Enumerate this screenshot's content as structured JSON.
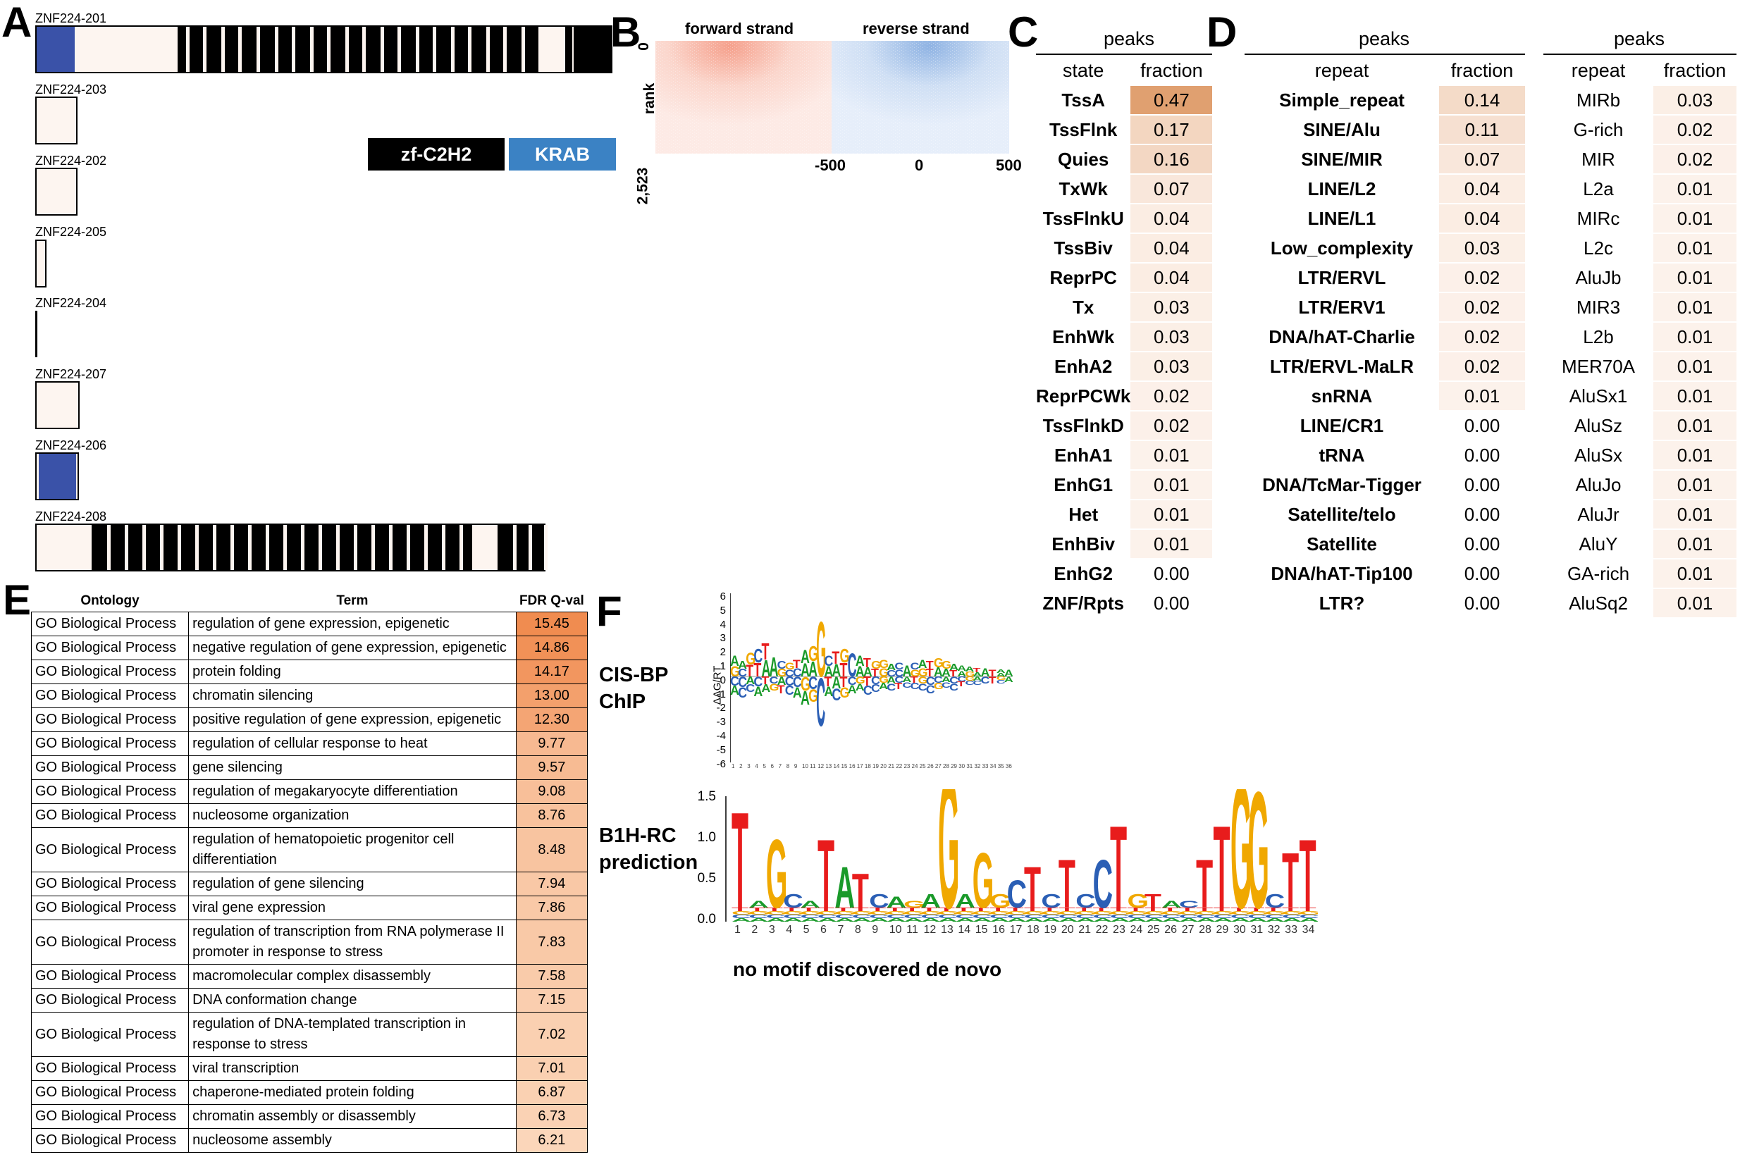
{
  "panel_labels": {
    "a": "A",
    "b": "B",
    "c": "C",
    "d": "D",
    "e": "E",
    "f": "F"
  },
  "panelA": {
    "transcripts": [
      {
        "name": "ZNF224-201"
      },
      {
        "name": "ZNF224-203"
      },
      {
        "name": "ZNF224-202"
      },
      {
        "name": "ZNF224-205"
      },
      {
        "name": "ZNF224-204"
      },
      {
        "name": "ZNF224-207"
      },
      {
        "name": "ZNF224-206"
      },
      {
        "name": "ZNF224-208"
      }
    ],
    "legend": {
      "zf": "zf-C2H2",
      "krab": "KRAB"
    },
    "colors": {
      "zf": "#000000",
      "krab": "#3a52a8",
      "krab_legend": "#3b82c4",
      "utr": "#fdf5f0"
    }
  },
  "panelB": {
    "forward": "forward strand",
    "reverse": "reverse strand",
    "rank_label": "rank",
    "rank_top": "0",
    "rank_bottom": "2,523",
    "x_ticks": [
      "-500",
      "0",
      "500"
    ]
  },
  "panelC": {
    "group_header": "peaks",
    "col_state": "state",
    "col_fraction": "fraction",
    "rows": [
      {
        "label": "TssA",
        "value": "0.47"
      },
      {
        "label": "TssFlnk",
        "value": "0.17"
      },
      {
        "label": "Quies",
        "value": "0.16"
      },
      {
        "label": "TxWk",
        "value": "0.07"
      },
      {
        "label": "TssFlnkU",
        "value": "0.04"
      },
      {
        "label": "TssBiv",
        "value": "0.04"
      },
      {
        "label": "ReprPC",
        "value": "0.04"
      },
      {
        "label": "Tx",
        "value": "0.03"
      },
      {
        "label": "EnhWk",
        "value": "0.03"
      },
      {
        "label": "EnhA2",
        "value": "0.03"
      },
      {
        "label": "ReprPCWk",
        "value": "0.02"
      },
      {
        "label": "TssFlnkD",
        "value": "0.02"
      },
      {
        "label": "EnhA1",
        "value": "0.01"
      },
      {
        "label": "EnhG1",
        "value": "0.01"
      },
      {
        "label": "Het",
        "value": "0.01"
      },
      {
        "label": "EnhBiv",
        "value": "0.01"
      },
      {
        "label": "EnhG2",
        "value": "0.00"
      },
      {
        "label": "ZNF/Rpts",
        "value": "0.00"
      }
    ]
  },
  "panelD1": {
    "group_header": "peaks",
    "col_repeat": "repeat",
    "col_fraction": "fraction",
    "rows": [
      {
        "label": "Simple_repeat",
        "value": "0.14"
      },
      {
        "label": "SINE/Alu",
        "value": "0.11"
      },
      {
        "label": "SINE/MIR",
        "value": "0.07"
      },
      {
        "label": "LINE/L2",
        "value": "0.04"
      },
      {
        "label": "LINE/L1",
        "value": "0.04"
      },
      {
        "label": "Low_complexity",
        "value": "0.03"
      },
      {
        "label": "LTR/ERVL",
        "value": "0.02"
      },
      {
        "label": "LTR/ERV1",
        "value": "0.02"
      },
      {
        "label": "DNA/hAT-Charlie",
        "value": "0.02"
      },
      {
        "label": "LTR/ERVL-MaLR",
        "value": "0.02"
      },
      {
        "label": "snRNA",
        "value": "0.01"
      },
      {
        "label": "LINE/CR1",
        "value": "0.00"
      },
      {
        "label": "tRNA",
        "value": "0.00"
      },
      {
        "label": "DNA/TcMar-Tigger",
        "value": "0.00"
      },
      {
        "label": "Satellite/telo",
        "value": "0.00"
      },
      {
        "label": "Satellite",
        "value": "0.00"
      },
      {
        "label": "DNA/hAT-Tip100",
        "value": "0.00"
      },
      {
        "label": "LTR?",
        "value": "0.00"
      }
    ]
  },
  "panelD2": {
    "group_header": "peaks",
    "col_repeat": "repeat",
    "col_fraction": "fraction",
    "rows": [
      {
        "label": "MIRb",
        "value": "0.03"
      },
      {
        "label": "G-rich",
        "value": "0.02"
      },
      {
        "label": "MIR",
        "value": "0.02"
      },
      {
        "label": "L2a",
        "value": "0.01"
      },
      {
        "label": "MIRc",
        "value": "0.01"
      },
      {
        "label": "L2c",
        "value": "0.01"
      },
      {
        "label": "AluJb",
        "value": "0.01"
      },
      {
        "label": "MIR3",
        "value": "0.01"
      },
      {
        "label": "L2b",
        "value": "0.01"
      },
      {
        "label": "MER70A",
        "value": "0.01"
      },
      {
        "label": "AluSx1",
        "value": "0.01"
      },
      {
        "label": "AluSz",
        "value": "0.01"
      },
      {
        "label": "AluSx",
        "value": "0.01"
      },
      {
        "label": "AluJo",
        "value": "0.01"
      },
      {
        "label": "AluJr",
        "value": "0.01"
      },
      {
        "label": "AluY",
        "value": "0.01"
      },
      {
        "label": "GA-rich",
        "value": "0.01"
      },
      {
        "label": "AluSq2",
        "value": "0.01"
      }
    ]
  },
  "panelE": {
    "headers": {
      "ontology": "Ontology",
      "term": "Term",
      "fdr": "FDR Q-val"
    },
    "rows": [
      {
        "ontology": "GO Biological Process",
        "term": "regulation of gene expression, epigenetic",
        "fdr": "15.45"
      },
      {
        "ontology": "GO Biological Process",
        "term": "negative regulation of gene expression, epigenetic",
        "fdr": "14.86"
      },
      {
        "ontology": "GO Biological Process",
        "term": "protein folding",
        "fdr": "14.17"
      },
      {
        "ontology": "GO Biological Process",
        "term": "chromatin silencing",
        "fdr": "13.00"
      },
      {
        "ontology": "GO Biological Process",
        "term": "positive regulation of gene expression, epigenetic",
        "fdr": "12.30"
      },
      {
        "ontology": "GO Biological Process",
        "term": "regulation of cellular response to heat",
        "fdr": "9.77"
      },
      {
        "ontology": "GO Biological Process",
        "term": "gene silencing",
        "fdr": "9.57"
      },
      {
        "ontology": "GO Biological Process",
        "term": "regulation of megakaryocyte differentiation",
        "fdr": "9.08"
      },
      {
        "ontology": "GO Biological Process",
        "term": "nucleosome organization",
        "fdr": "8.76"
      },
      {
        "ontology": "GO Biological Process",
        "term": "regulation of hematopoietic progenitor cell differentiation",
        "fdr": "8.48"
      },
      {
        "ontology": "GO Biological Process",
        "term": "regulation of gene silencing",
        "fdr": "7.94"
      },
      {
        "ontology": "GO Biological Process",
        "term": "viral gene expression",
        "fdr": "7.86"
      },
      {
        "ontology": "GO Biological Process",
        "term": "regulation of transcription from RNA polymerase II promoter in response to stress",
        "fdr": "7.83"
      },
      {
        "ontology": "GO Biological Process",
        "term": "macromolecular complex disassembly",
        "fdr": "7.58"
      },
      {
        "ontology": "GO Biological Process",
        "term": "DNA conformation change",
        "fdr": "7.15"
      },
      {
        "ontology": "GO Biological Process",
        "term": "regulation of DNA-templated transcription in response to stress",
        "fdr": "7.02"
      },
      {
        "ontology": "GO Biological Process",
        "term": "viral transcription",
        "fdr": "7.01"
      },
      {
        "ontology": "GO Biological Process",
        "term": "chaperone-mediated protein folding",
        "fdr": "6.87"
      },
      {
        "ontology": "GO Biological Process",
        "term": "chromatin assembly or disassembly",
        "fdr": "6.73"
      },
      {
        "ontology": "GO Biological Process",
        "term": "nucleosome assembly",
        "fdr": "6.21"
      }
    ]
  },
  "panelF": {
    "cisbp_line1": "CIS-BP",
    "cisbp_line2": "ChIP",
    "b1h_line1": "B1H-RC",
    "b1h_line2": "prediction",
    "footer": "no motif discovered de novo",
    "cisbp_ylabel": "ΔΔG/RT",
    "cisbp_yticks": [
      "6",
      "5",
      "4",
      "3",
      "2",
      "1",
      "0",
      "-1",
      "-2",
      "-3",
      "-4",
      "-5",
      "-6"
    ],
    "b1h_yticks": [
      "1.5",
      "1.0",
      "0.5",
      "0.0"
    ],
    "b1h_positions": 34,
    "base_colors": {
      "A": "#1a9a2a",
      "C": "#2b5fb5",
      "G": "#f0a800",
      "T": "#e81c1c"
    }
  }
}
